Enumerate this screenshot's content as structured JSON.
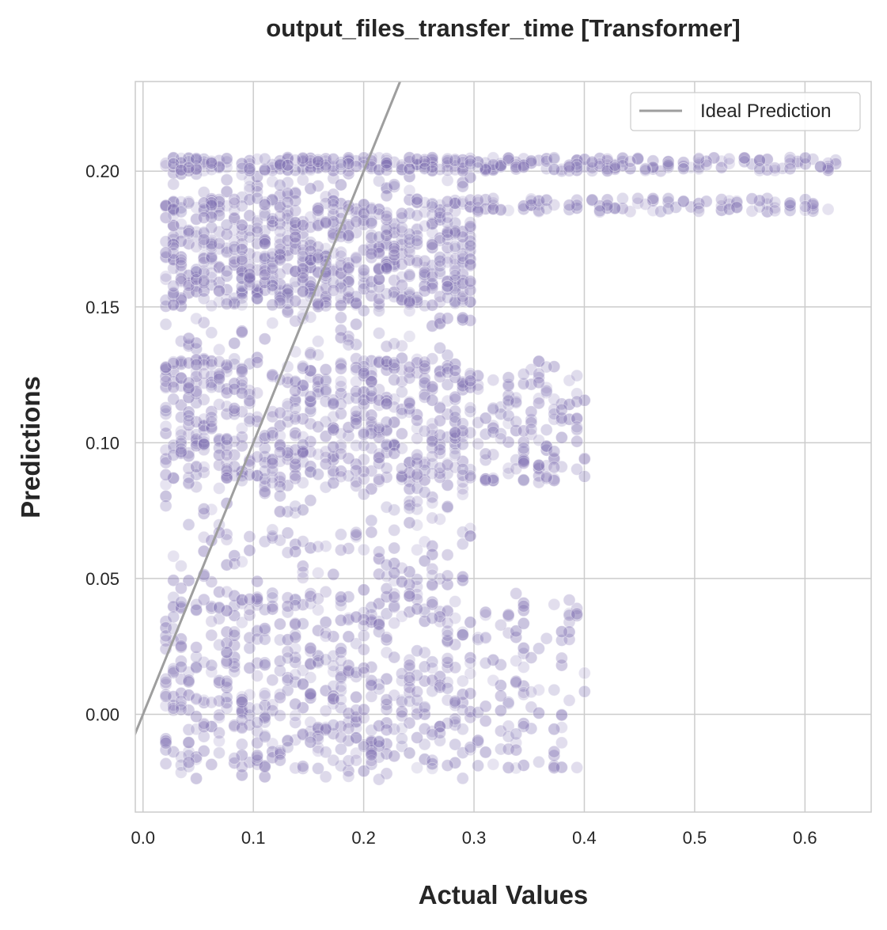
{
  "chart_data": {
    "type": "scatter",
    "title": "output_files_transfer_time [Transformer]",
    "xlabel": "Actual Values",
    "ylabel": "Predictions",
    "xlim": [
      -0.007,
      0.66
    ],
    "ylim": [
      -0.036,
      0.233
    ],
    "xticks": [
      0.0,
      0.1,
      0.2,
      0.3,
      0.4,
      0.5,
      0.6
    ],
    "xtick_labels": [
      "0.0",
      "0.1",
      "0.2",
      "0.3",
      "0.4",
      "0.5",
      "0.6"
    ],
    "yticks": [
      0.0,
      0.05,
      0.1,
      0.15,
      0.2
    ],
    "ytick_labels": [
      "0.00",
      "0.05",
      "0.10",
      "0.15",
      "0.20"
    ],
    "grid": true,
    "legend_position": "top-right",
    "point_color": "#8172b3",
    "line_color": "#9e9e9e",
    "series": [
      {
        "kind": "line",
        "name": "Ideal Prediction",
        "x": [
          -0.01,
          0.24
        ],
        "y": [
          -0.01,
          0.24
        ]
      },
      {
        "kind": "scatter",
        "x_clusters": [
          {
            "x": [
              0.02,
              0.3
            ],
            "y": [
              -0.024,
              0.205
            ],
            "density": 0.9
          },
          {
            "x": [
              0.02,
              0.4
            ],
            "y": [
              0.085,
              0.13
            ],
            "density": 0.6
          },
          {
            "x": [
              0.02,
              0.3
            ],
            "y": [
              0.15,
              0.19
            ],
            "density": 0.6
          },
          {
            "x": [
              0.02,
              0.63
            ],
            "y": [
              0.2,
              0.205
            ],
            "density": 0.4
          },
          {
            "x": [
              0.3,
              0.63
            ],
            "y": [
              0.185,
              0.19
            ],
            "density": 0.15
          },
          {
            "x": [
              0.02,
              0.4
            ],
            "y": [
              -0.02,
              0.045
            ],
            "density": 0.45
          }
        ]
      }
    ],
    "legend": [
      "Ideal Prediction"
    ]
  }
}
